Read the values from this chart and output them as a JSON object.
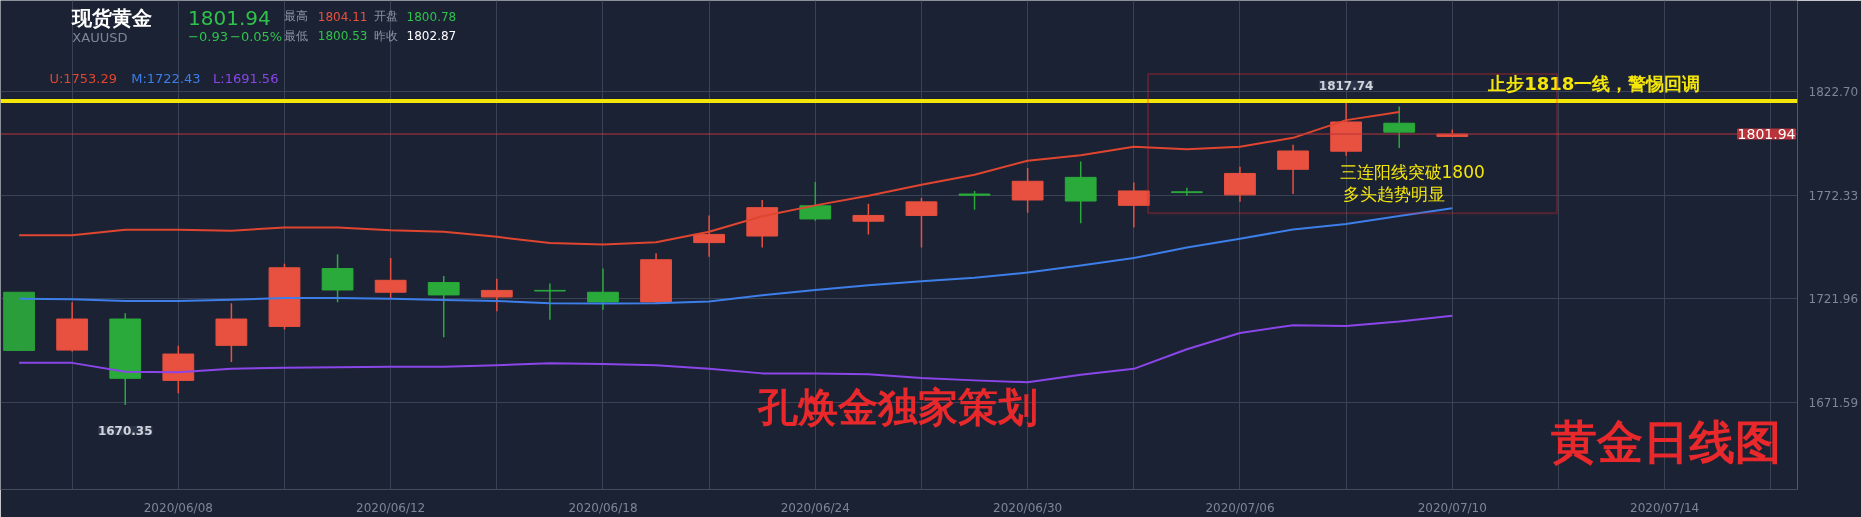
{
  "chart_data": {
    "type": "candlestick",
    "title": "现货黄金",
    "subtitle": "XAUUSD",
    "categories": [
      null,
      null,
      null,
      "2020/06/08",
      null,
      null,
      null,
      "2020/06/12",
      null,
      null,
      null,
      "2020/06/18",
      null,
      null,
      null,
      "2020/06/24",
      null,
      null,
      null,
      "2020/06/30",
      null,
      null,
      null,
      "2020/07/06",
      null,
      null,
      null,
      "2020/07/10",
      null,
      null,
      null,
      "2020/07/14",
      null,
      null,
      null
    ],
    "ohlc": [
      [
        1725.1,
        1725.1,
        1696.8,
        1696.8
      ],
      [
        1697.0,
        1720.2,
        1696.3,
        1712.1
      ],
      [
        1712.1,
        1714.9,
        1670.35,
        1683.3
      ],
      [
        1682.3,
        1699.1,
        1676.1,
        1695.1
      ],
      [
        1699.3,
        1719.8,
        1691.2,
        1712.1
      ],
      [
        1708.5,
        1739.0,
        1707.0,
        1737.0
      ],
      [
        1736.6,
        1743.6,
        1720.2,
        1726.2
      ],
      [
        1725.1,
        1741.7,
        1722.3,
        1730.9
      ],
      [
        1729.8,
        1733.0,
        1703.2,
        1723.8
      ],
      [
        1722.8,
        1731.7,
        1715.9,
        1726.0
      ],
      [
        1726.0,
        1729.4,
        1711.7,
        1725.7
      ],
      [
        1725.1,
        1736.6,
        1716.6,
        1720.4
      ],
      [
        1720.4,
        1744.1,
        1719.8,
        1740.9
      ],
      [
        1749.2,
        1762.4,
        1742.4,
        1753.2
      ],
      [
        1752.4,
        1769.9,
        1746.8,
        1766.2
      ],
      [
        1767.1,
        1778.6,
        1759.8,
        1760.7
      ],
      [
        1759.6,
        1768.1,
        1753.2,
        1762.4
      ],
      [
        1762.4,
        1770.9,
        1746.8,
        1769.0
      ],
      [
        1772.8,
        1774.3,
        1765.2,
        1772.2
      ],
      [
        1769.9,
        1785.4,
        1763.7,
        1779.0
      ],
      [
        1780.9,
        1788.6,
        1758.6,
        1769.4
      ],
      [
        1767.3,
        1778.4,
        1756.6,
        1774.3
      ],
      [
        1773.9,
        1775.8,
        1772.0,
        1773.5
      ],
      [
        1772.4,
        1786.0,
        1769.0,
        1782.8
      ],
      [
        1784.8,
        1796.7,
        1772.8,
        1793.7
      ],
      [
        1793.6,
        1817.74,
        1791.4,
        1807.8
      ],
      [
        1807.2,
        1815.3,
        1795.2,
        1802.87
      ],
      [
        1800.78,
        1804.11,
        1800.53,
        1801.94
      ],
      null,
      null,
      null,
      null,
      null,
      null,
      null
    ],
    "colors": [
      "#2a9e3a",
      "#e8503f",
      "#2aaa3a",
      "#e8503f",
      "#e8503f",
      "#e8503f",
      "#2aaa3a",
      "#e8503f",
      "#2aaa3a",
      "#e8503f",
      "#2aaa3a",
      "#2aaa3a",
      "#e8503f",
      "#e8503f",
      "#e8503f",
      "#2aaa3a",
      "#e8503f",
      "#e8503f",
      "#2aaa3a",
      "#e8503f",
      "#2aaa3a",
      "#e8503f",
      "#2aaa3a",
      "#e8503f",
      "#e8503f",
      "#e8503f",
      "#2aaa3a",
      "#e8503f",
      null,
      null,
      null,
      null,
      null,
      null,
      null
    ],
    "series": [
      {
        "name": "U:1753.29",
        "type": "line",
        "color": "#e0452f",
        "values": [
          1752.8,
          1752.8,
          1755.4,
          1755.4,
          1755.0,
          1756.6,
          1756.6,
          1755.2,
          1754.5,
          1752.0,
          1749.0,
          1748.3,
          1749.4,
          1754.5,
          1762.0,
          1767.3,
          1772.0,
          1777.3,
          1782.2,
          1789.0,
          1791.6,
          1795.8,
          1794.6,
          1795.8,
          1800.1,
          1808.7,
          1812.7,
          null,
          null,
          null,
          null,
          null,
          null,
          null,
          null
        ]
      },
      {
        "name": "M:1722.43",
        "type": "line",
        "color": "#3d7ee8",
        "values": [
          1721.9,
          1721.7,
          1720.8,
          1720.8,
          1721.5,
          1722.3,
          1722.3,
          1721.9,
          1721.3,
          1720.8,
          1719.8,
          1719.6,
          1719.8,
          1720.6,
          1723.6,
          1726.2,
          1728.5,
          1730.4,
          1732.1,
          1734.7,
          1738.1,
          1741.7,
          1746.8,
          1751.1,
          1755.6,
          1758.3,
          1762.1,
          1765.9,
          null,
          null,
          null,
          null,
          null,
          null,
          null
        ]
      },
      {
        "name": "L:1691.56",
        "type": "line",
        "color": "#8a46e8",
        "values": [
          1690.8,
          1690.8,
          1686.5,
          1686.3,
          1688.0,
          1688.4,
          1688.7,
          1688.9,
          1688.9,
          1689.7,
          1690.6,
          1690.2,
          1689.7,
          1687.9,
          1685.7,
          1685.7,
          1685.3,
          1683.5,
          1682.3,
          1681.4,
          1685.0,
          1687.9,
          1697.4,
          1705.3,
          1709.1,
          1708.7,
          1710.9,
          1713.7,
          null,
          null,
          null,
          null,
          null,
          null,
          null
        ]
      }
    ],
    "ylim": [
      1629.3,
      1866.8
    ],
    "yticks": [
      {
        "value": 1671.59,
        "label": "1671.59"
      },
      {
        "value": 1721.96,
        "label": "1721.96"
      },
      {
        "value": 1772.33,
        "label": "1772.33"
      },
      {
        "value": 1822.7,
        "label": "1822.70"
      }
    ],
    "grid": true,
    "legend": "top left",
    "ref_lines": [
      {
        "axis": "y",
        "value": 1801.94,
        "label": "1801.94",
        "color": "#b8343a"
      },
      {
        "axis": "y",
        "value": 1818,
        "label": "止步1818一线，警惕回调",
        "color": "#f5e60a"
      }
    ],
    "annotations": [
      "1801.94",
      "−0.93",
      "−0.05%",
      "最高",
      "1804.11",
      "开盘",
      "1800.78",
      "最低",
      "1800.53",
      "昨收",
      "1802.87",
      "三连阳线突破1800",
      "多头趋势明显",
      "孔焕金独家策划",
      "黄金日线图",
      {
        "text": "1670.35",
        "y": 1670.35
      },
      {
        "text": "1817.74",
        "y": 1817.74
      }
    ]
  }
}
